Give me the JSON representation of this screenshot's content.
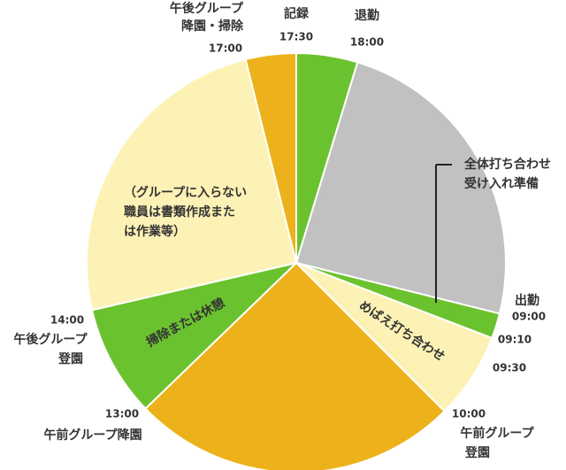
{
  "chart_data": {
    "type": "pie",
    "values": [
      17,
      87,
      7,
      24,
      91,
      31,
      89,
      14
    ],
    "colors": [
      "#6bc22f",
      "#c1c1c1",
      "#6bc22f",
      "#fdf2b5",
      "#edb21b",
      "#6bc22f",
      "#fdf2b5",
      "#edb21b"
    ],
    "slice_labels": [
      null,
      null,
      null,
      [
        "めばえ打ち合わせ"
      ],
      null,
      [
        "掃除または休憩"
      ],
      [
        "（グループに入らない",
        "職員は書類作成また",
        "は作業等）"
      ],
      null
    ],
    "annotations": [
      {
        "lines": [
          "記録",
          "17:30"
        ]
      },
      {
        "lines": [
          "退勤",
          "18:00"
        ]
      },
      {
        "lines": [
          "午後グループ",
          "降園・掃除",
          "17:00"
        ]
      },
      {
        "lines": [
          "全体打ち合わせ",
          "受け入れ準備"
        ]
      },
      {
        "lines": [
          "出勤",
          "09:00"
        ]
      },
      {
        "lines": [
          "09:10"
        ]
      },
      {
        "lines": [
          "09:30"
        ]
      },
      {
        "lines": [
          "10:00",
          "午前グループ",
          "登園"
        ]
      },
      {
        "lines": [
          "13:00",
          "午前グループ降園"
        ]
      },
      {
        "lines": [
          "14:00",
          "午後グループ",
          "登園"
        ]
      }
    ]
  }
}
